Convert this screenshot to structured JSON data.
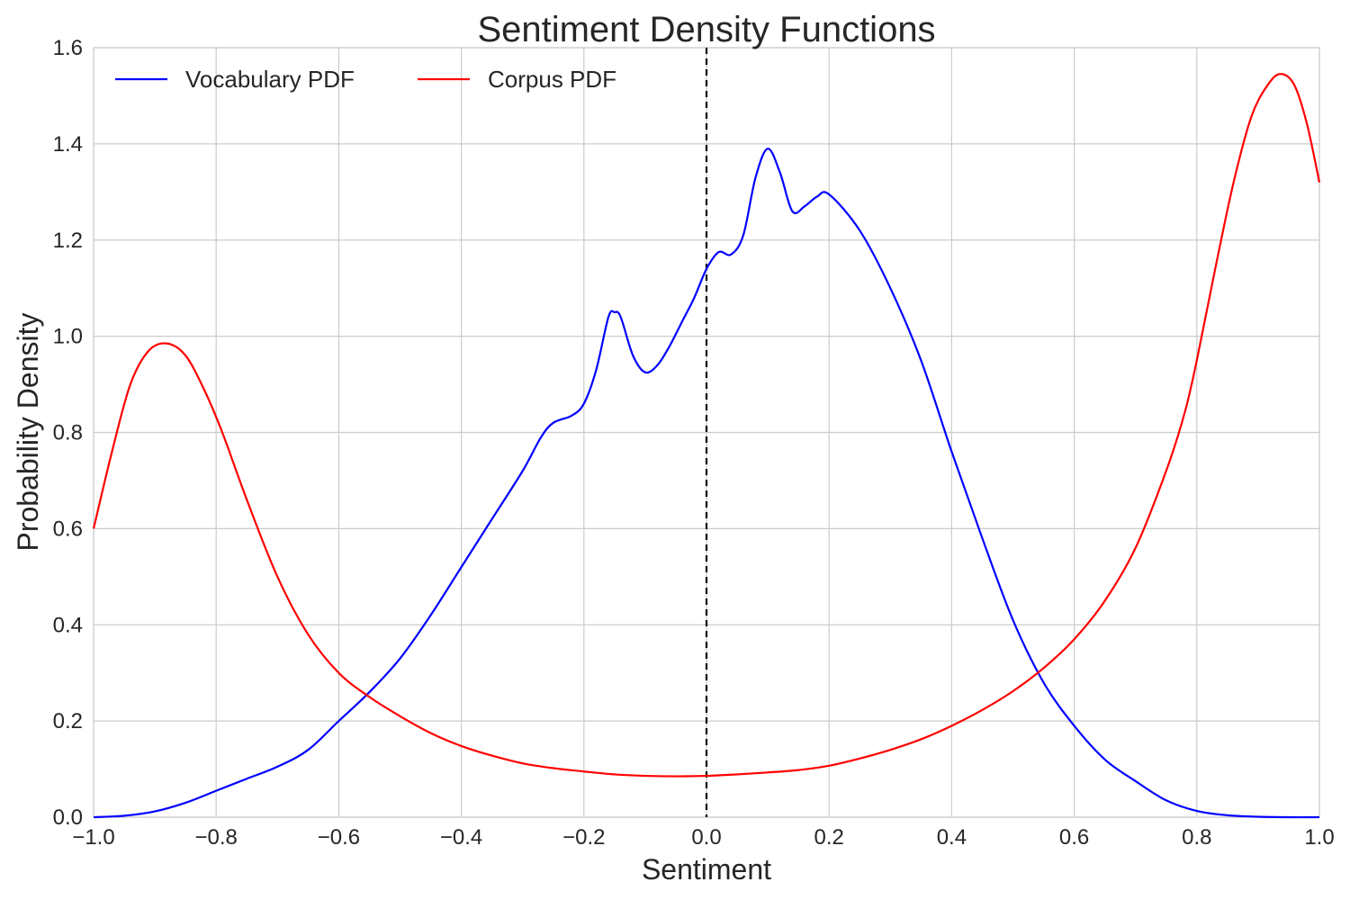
{
  "chart_data": {
    "type": "line",
    "title": "Sentiment Density Functions",
    "xlabel": "Sentiment",
    "ylabel": "Probability Density",
    "xlim": [
      -1.0,
      1.0
    ],
    "ylim": [
      0.0,
      1.6
    ],
    "x_ticks": [
      -1.0,
      -0.8,
      -0.6,
      -0.4,
      -0.2,
      0.0,
      0.2,
      0.4,
      0.6,
      0.8,
      1.0
    ],
    "x_tick_labels": [
      "−1.0",
      "−0.8",
      "−0.6",
      "−0.4",
      "−0.2",
      "0.0",
      "0.2",
      "0.4",
      "0.6",
      "0.8",
      "1.0"
    ],
    "y_ticks": [
      0.0,
      0.2,
      0.4,
      0.6,
      0.8,
      1.0,
      1.2,
      1.4,
      1.6
    ],
    "y_tick_labels": [
      "0.0",
      "0.2",
      "0.4",
      "0.6",
      "0.8",
      "1.0",
      "1.2",
      "1.4",
      "1.6"
    ],
    "grid": true,
    "legend_position": "top-left",
    "vline": {
      "x": 0.0,
      "style": "dashed",
      "color": "#000000"
    },
    "series": [
      {
        "name": "Vocabulary PDF",
        "color": "#0000ff",
        "x": [
          -1.0,
          -0.95,
          -0.9,
          -0.85,
          -0.8,
          -0.75,
          -0.7,
          -0.65,
          -0.6,
          -0.55,
          -0.5,
          -0.45,
          -0.4,
          -0.35,
          -0.3,
          -0.27,
          -0.25,
          -0.22,
          -0.2,
          -0.18,
          -0.16,
          -0.15,
          -0.14,
          -0.12,
          -0.1,
          -0.08,
          -0.06,
          -0.04,
          -0.02,
          0.0,
          0.02,
          0.04,
          0.06,
          0.08,
          0.1,
          0.12,
          0.14,
          0.16,
          0.18,
          0.2,
          0.25,
          0.3,
          0.35,
          0.4,
          0.45,
          0.5,
          0.55,
          0.6,
          0.65,
          0.7,
          0.75,
          0.8,
          0.85,
          0.9,
          0.95,
          1.0
        ],
        "y": [
          0.0,
          0.003,
          0.012,
          0.03,
          0.055,
          0.08,
          0.105,
          0.14,
          0.2,
          0.26,
          0.33,
          0.42,
          0.52,
          0.62,
          0.72,
          0.79,
          0.82,
          0.835,
          0.86,
          0.93,
          1.04,
          1.05,
          1.04,
          0.96,
          0.925,
          0.94,
          0.98,
          1.03,
          1.08,
          1.14,
          1.175,
          1.17,
          1.21,
          1.33,
          1.39,
          1.34,
          1.26,
          1.27,
          1.29,
          1.295,
          1.22,
          1.1,
          0.95,
          0.76,
          0.58,
          0.41,
          0.28,
          0.19,
          0.12,
          0.075,
          0.035,
          0.013,
          0.004,
          0.001,
          0.0,
          0.0
        ]
      },
      {
        "name": "Corpus PDF",
        "color": "#ff0000",
        "x": [
          -1.0,
          -0.97,
          -0.94,
          -0.91,
          -0.88,
          -0.85,
          -0.82,
          -0.79,
          -0.75,
          -0.7,
          -0.65,
          -0.6,
          -0.55,
          -0.5,
          -0.45,
          -0.4,
          -0.35,
          -0.3,
          -0.25,
          -0.2,
          -0.15,
          -0.1,
          -0.05,
          0.0,
          0.05,
          0.1,
          0.15,
          0.2,
          0.25,
          0.3,
          0.35,
          0.4,
          0.45,
          0.5,
          0.55,
          0.6,
          0.65,
          0.7,
          0.75,
          0.78,
          0.8,
          0.83,
          0.86,
          0.89,
          0.92,
          0.94,
          0.96,
          0.98,
          1.0
        ],
        "y": [
          0.6,
          0.76,
          0.9,
          0.97,
          0.985,
          0.96,
          0.89,
          0.8,
          0.66,
          0.5,
          0.38,
          0.3,
          0.25,
          0.21,
          0.175,
          0.148,
          0.128,
          0.112,
          0.102,
          0.095,
          0.089,
          0.086,
          0.085,
          0.086,
          0.089,
          0.093,
          0.098,
          0.107,
          0.122,
          0.14,
          0.162,
          0.19,
          0.223,
          0.262,
          0.31,
          0.37,
          0.45,
          0.56,
          0.72,
          0.84,
          0.95,
          1.14,
          1.32,
          1.46,
          1.53,
          1.545,
          1.52,
          1.44,
          1.32
        ]
      }
    ]
  }
}
